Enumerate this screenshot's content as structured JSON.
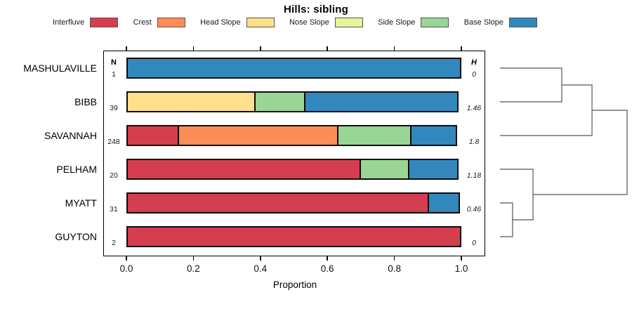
{
  "title": "Hills: sibling",
  "legend": {
    "items": [
      {
        "label": "Interfluve",
        "color": "#D53E4F"
      },
      {
        "label": "Crest",
        "color": "#FC8D59"
      },
      {
        "label": "Head Slope",
        "color": "#FEE08B"
      },
      {
        "label": "Nose Slope",
        "color": "#E6F598"
      },
      {
        "label": "Side Slope",
        "color": "#99D594"
      },
      {
        "label": "Base Slope",
        "color": "#3288BD"
      }
    ]
  },
  "chart_data": {
    "type": "bar",
    "stacked": true,
    "orientation": "horizontal",
    "title": "Hills: sibling",
    "xlabel": "Proportion",
    "xlim": [
      0,
      1
    ],
    "xticks": [
      "0.0",
      "0.2",
      "0.4",
      "0.6",
      "0.8",
      "1.0"
    ],
    "grid": false,
    "legend_position": "top",
    "legend_entries": [
      "Interfluve",
      "Crest",
      "Head Slope",
      "Nose Slope",
      "Side Slope",
      "Base Slope"
    ],
    "series_colors": {
      "Interfluve": "#D53E4F",
      "Crest": "#FC8D59",
      "Head Slope": "#FEE08B",
      "Nose Slope": "#E6F598",
      "Side Slope": "#99D594",
      "Base Slope": "#3288BD"
    },
    "column_headers": {
      "n": "N",
      "h": "H"
    },
    "rows": [
      {
        "label": "MASHULAVILLE",
        "n": "1",
        "h": "0",
        "segments": [
          {
            "name": "Base Slope",
            "value": 1.0
          }
        ]
      },
      {
        "label": "BIBB",
        "n": "39",
        "h": "1.46",
        "segments": [
          {
            "name": "Head Slope",
            "value": 0.385
          },
          {
            "name": "Side Slope",
            "value": 0.154
          },
          {
            "name": "Base Slope",
            "value": 0.461
          }
        ]
      },
      {
        "label": "SAVANNAH",
        "n": "248",
        "h": "1.8",
        "segments": [
          {
            "name": "Interfluve",
            "value": 0.157
          },
          {
            "name": "Crest",
            "value": 0.48
          },
          {
            "name": "Side Slope",
            "value": 0.222
          },
          {
            "name": "Base Slope",
            "value": 0.141
          }
        ]
      },
      {
        "label": "PELHAM",
        "n": "20",
        "h": "1.18",
        "segments": [
          {
            "name": "Interfluve",
            "value": 0.7
          },
          {
            "name": "Side Slope",
            "value": 0.15
          },
          {
            "name": "Base Slope",
            "value": 0.15
          }
        ]
      },
      {
        "label": "MYATT",
        "n": "31",
        "h": "0.46",
        "segments": [
          {
            "name": "Interfluve",
            "value": 0.903
          },
          {
            "name": "Base Slope",
            "value": 0.097
          }
        ]
      },
      {
        "label": "GUYTON",
        "n": "2",
        "h": "0",
        "segments": [
          {
            "name": "Interfluve",
            "value": 1.0
          }
        ]
      }
    ],
    "dendrogram": {
      "leaf_order": [
        "MASHULAVILLE",
        "BIBB",
        "SAVANNAH",
        "PELHAM",
        "MYATT",
        "GUYTON"
      ],
      "merges": [
        {
          "id": "M0",
          "children": [
            "L0",
            "L1"
          ],
          "height": 0.486
        },
        {
          "id": "M1",
          "children": [
            "M0",
            "L2"
          ],
          "height": 0.724
        },
        {
          "id": "M2",
          "children": [
            "L4",
            "L5"
          ],
          "height": 0.099
        },
        {
          "id": "M3",
          "children": [
            "L3",
            "M2"
          ],
          "height": 0.26
        },
        {
          "id": "M4",
          "children": [
            "M1",
            "M3"
          ],
          "height": 1.0
        }
      ],
      "line_color": "#555555"
    }
  }
}
